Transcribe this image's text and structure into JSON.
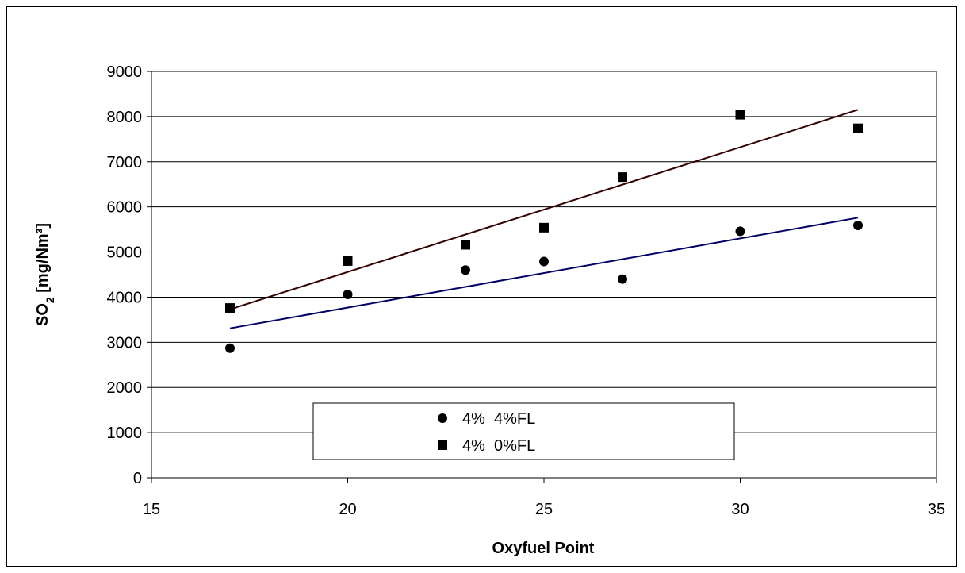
{
  "chart_data": {
    "type": "scatter",
    "xlabel": "Oxyfuel Point",
    "ylabel": {
      "main": "SO",
      "sub": "2",
      "rest": " [mg/Nm³]"
    },
    "xlim": [
      15,
      35
    ],
    "ylim": [
      0,
      9000
    ],
    "x_ticks": [
      15,
      20,
      25,
      30,
      35
    ],
    "y_ticks": [
      0,
      1000,
      2000,
      3000,
      4000,
      5000,
      6000,
      7000,
      8000,
      9000
    ],
    "grid": "horizontal",
    "legend_position": "bottom-center",
    "series": [
      {
        "name": "4%  4%FL",
        "marker": "circle",
        "color": "#000000",
        "trend_color": "#000066",
        "points": [
          [
            17,
            2870
          ],
          [
            20,
            4060
          ],
          [
            23,
            4600
          ],
          [
            25,
            4790
          ],
          [
            27,
            4400
          ],
          [
            30,
            5460
          ],
          [
            33,
            5590
          ]
        ],
        "trendline": [
          [
            17,
            3310
          ],
          [
            33,
            5760
          ]
        ]
      },
      {
        "name": "4%  0%FL",
        "marker": "square",
        "color": "#000000",
        "trend_color": "#330000",
        "points": [
          [
            17,
            3760
          ],
          [
            20,
            4800
          ],
          [
            23,
            5160
          ],
          [
            25,
            5540
          ],
          [
            27,
            6660
          ],
          [
            30,
            8040
          ],
          [
            33,
            7740
          ]
        ],
        "trendline": [
          [
            17,
            3730
          ],
          [
            33,
            8150
          ]
        ]
      }
    ]
  }
}
